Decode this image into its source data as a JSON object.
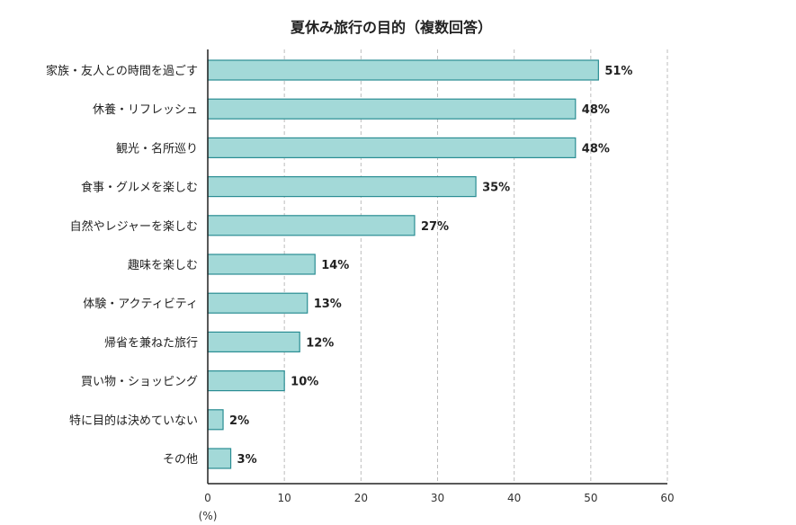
{
  "chart_data": {
    "type": "bar",
    "orientation": "horizontal",
    "title": "夏休み旅行の目的（複数回答）",
    "xlabel": "(%)",
    "ylabel": "",
    "xlim": [
      0,
      60
    ],
    "xticks": [
      0,
      10,
      20,
      30,
      40,
      50,
      60
    ],
    "grid": "vertical dashed",
    "categories": [
      "家族・友人との時間を過ごす",
      "休養・リフレッシュ",
      "観光・名所巡り",
      "食事・グルメを楽しむ",
      "自然やレジャーを楽しむ",
      "趣味を楽しむ",
      "体験・アクティビティ",
      "帰省を兼ねた旅行",
      "買い物・ショッピング",
      "特に目的は決めていない",
      "その他"
    ],
    "values": [
      51,
      48,
      48,
      35,
      27,
      14,
      13,
      12,
      10,
      2,
      3
    ],
    "value_labels": [
      "51%",
      "48%",
      "48%",
      "35%",
      "27%",
      "14%",
      "13%",
      "12%",
      "10%",
      "2%",
      "3%"
    ],
    "colors": {
      "bar_fill": "#a3d9d8",
      "bar_stroke": "#2a8d93",
      "grid": "#bdbdbd",
      "axis": "#222222"
    }
  }
}
